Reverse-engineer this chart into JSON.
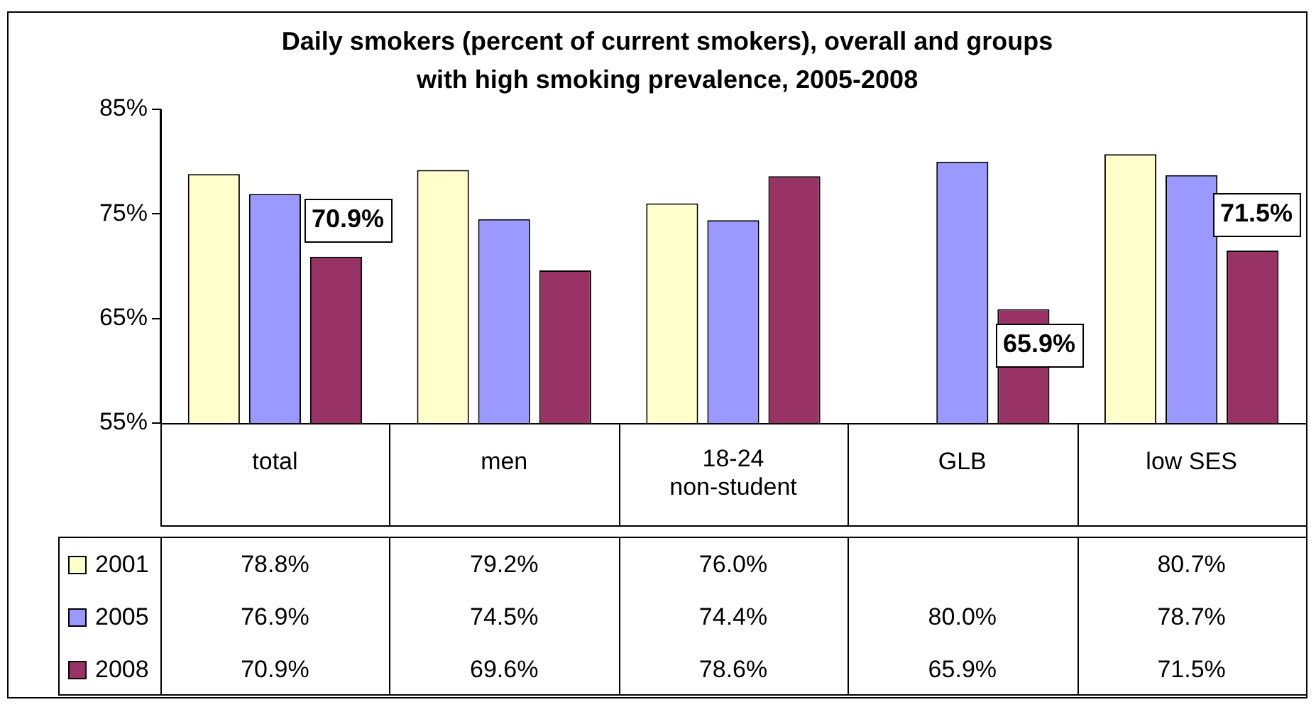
{
  "chart_data": {
    "type": "bar",
    "title": "Daily smokers (percent of current smokers), overall and groups with high smoking prevalence, 2005-2008",
    "categories": [
      "total",
      "men",
      "18-24 non-student",
      "GLB",
      "low SES"
    ],
    "series": [
      {
        "name": "2001",
        "color": "#ffffcc",
        "values": [
          78.8,
          79.2,
          76.0,
          null,
          80.7
        ],
        "value_labels": [
          "78.8%",
          "79.2%",
          "76.0%",
          null,
          "80.7%"
        ]
      },
      {
        "name": "2005",
        "color": "#9999ff",
        "values": [
          76.9,
          74.5,
          74.4,
          80.0,
          78.7
        ],
        "value_labels": [
          "76.9%",
          "74.5%",
          "74.4%",
          "80.0%",
          "78.7%"
        ]
      },
      {
        "name": "2008",
        "color": "#993366",
        "values": [
          70.9,
          69.6,
          78.6,
          65.9,
          71.5
        ],
        "value_labels": [
          "70.9%",
          "69.6%",
          "78.6%",
          "65.9%",
          "71.5%"
        ]
      }
    ],
    "ylim": [
      55,
      85
    ],
    "yticks": [
      {
        "value": 55,
        "label": "55%"
      },
      {
        "value": 65,
        "label": "65%"
      },
      {
        "value": 75,
        "label": "75%"
      },
      {
        "value": 85,
        "label": "85%"
      }
    ],
    "grid": false,
    "legend": "bottom",
    "annotations": [
      "70.9%",
      "65.9%",
      "71.5%"
    ]
  }
}
